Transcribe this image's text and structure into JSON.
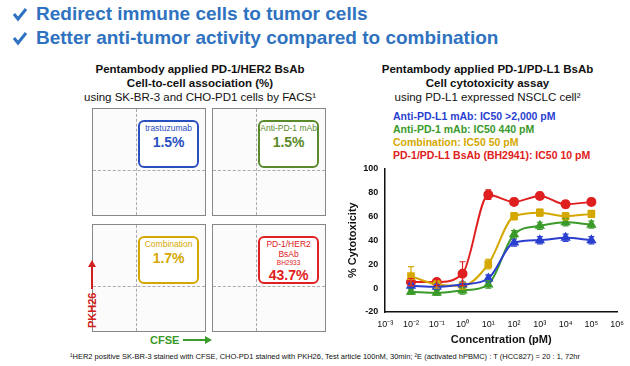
{
  "header": {
    "bullets": [
      "Redirect immune cells to tumor cells",
      "Better anti-tumor activity compared to combination"
    ]
  },
  "left_panel": {
    "title": [
      "Pentambody applied PD-1/HER2 BsAb",
      "Cell-to-cell association (%)"
    ],
    "subtitle": "using SK-BR-3 and CHO-PD1 cells by FACS¹",
    "y_label": "PKH26",
    "x_label": "CFSE",
    "plots": [
      {
        "name": "trastuzumab",
        "percent": "1.5%",
        "color": "#2a4fbf"
      },
      {
        "name": "Anti-PD-1 mAb",
        "percent": "1.5%",
        "color": "#5a8a2a"
      },
      {
        "name": "Combination",
        "percent": "1.7%",
        "color": "#d4a800"
      },
      {
        "name": "PD-1/HER2 BsAb",
        "code": "BH2933",
        "percent": "43.7%",
        "color": "#e02020"
      }
    ]
  },
  "right_panel": {
    "title": [
      "Pentambody applied PD-1/PD-L1 BsAb",
      "Cell cytotoxicity assay"
    ],
    "subtitle": "using PD-L1 expressed NSCLC cell²"
  },
  "chart_data": {
    "type": "line",
    "x_label": "Concentration (pM)",
    "y_label": "% Cytotoxicity",
    "log": "x",
    "grid": false,
    "x": [
      0.01,
      0.1,
      1,
      10,
      100,
      1000,
      10000,
      100000
    ],
    "xlim": [
      0.001,
      1000000
    ],
    "xticks": [
      {
        "value": 0.001,
        "label": "10⁻³"
      },
      {
        "value": 0.01,
        "label": "10⁻²"
      },
      {
        "value": 0.1,
        "label": "10⁻¹"
      },
      {
        "value": 1,
        "label": "10⁰"
      },
      {
        "value": 10,
        "label": "10¹"
      },
      {
        "value": 100,
        "label": "10²"
      },
      {
        "value": 1000,
        "label": "10³"
      },
      {
        "value": 10000,
        "label": "10⁴"
      },
      {
        "value": 100000,
        "label": "10⁵"
      },
      {
        "value": 1000000,
        "label": "10⁶"
      }
    ],
    "ylim": [
      -20,
      100
    ],
    "yticks": [
      -20,
      0,
      20,
      40,
      60,
      80,
      100
    ],
    "series": [
      {
        "name": "Anti-PD-L1 mAb: IC50 >2,000 pM",
        "color": "#2a3fcf",
        "marker": "triangle",
        "values": [
          2,
          1,
          3,
          8,
          38,
          40,
          42,
          40
        ],
        "errors": [
          2,
          2,
          2,
          3,
          3,
          3,
          3,
          3
        ]
      },
      {
        "name": "Anti-PD-1 mAb: IC50 440 pM",
        "color": "#3a9a2a",
        "marker": "triangle",
        "values": [
          -3,
          -4,
          -2,
          3,
          45,
          52,
          55,
          53
        ],
        "errors": [
          2,
          2,
          3,
          3,
          3,
          3,
          3,
          3
        ]
      },
      {
        "name": "Combination: IC50 50 pM",
        "color": "#d4a800",
        "marker": "square",
        "values": [
          10,
          3,
          2,
          20,
          60,
          63,
          60,
          62
        ],
        "errors": [
          8,
          3,
          3,
          4,
          3,
          3,
          3,
          3
        ]
      },
      {
        "name": "PD-1/PD-L1 BsAb (BH2941): IC50 10 pM",
        "color": "#e02020",
        "marker": "circle",
        "values": [
          5,
          5,
          12,
          78,
          72,
          77,
          70,
          72
        ],
        "errors": [
          3,
          3,
          10,
          4,
          3,
          3,
          3,
          3
        ]
      }
    ]
  },
  "footnote": "¹HER2 positive SK-BR-3 stained with CFSE, CHO-PD1 stained with PKH26, Test article 100nM, 30min; ²E (activated hPBMC) : T (HCC827) = 20 : 1, 72hr"
}
